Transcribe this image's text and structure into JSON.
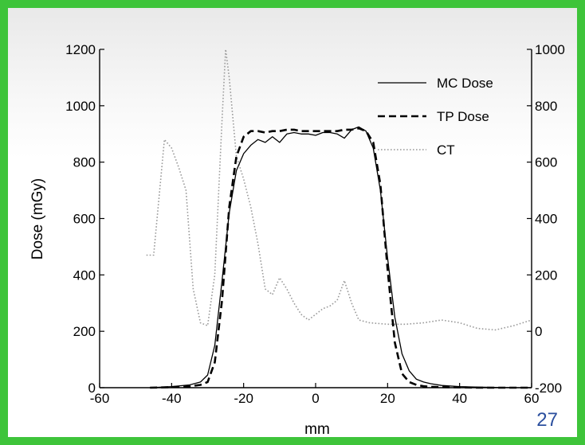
{
  "page_number": "27",
  "colors": {
    "frame": "#3ec43a",
    "mc_dose": "#000000",
    "tp_dose": "#000000",
    "ct": "#9a9a9a",
    "page_number": "#2b4f9e"
  },
  "chart_data": {
    "type": "line",
    "title": "",
    "xlabel": "mm",
    "ylabel": "Dose (mGy)",
    "y2label": "",
    "xlim": [
      -60,
      60
    ],
    "ylim": [
      0,
      1200
    ],
    "y2lim": [
      -200,
      1000
    ],
    "xticks": [
      "-60",
      "-40",
      "-20",
      "0",
      "20",
      "40",
      "60"
    ],
    "yticks": [
      "0",
      "200",
      "400",
      "600",
      "800",
      "1000",
      "1200"
    ],
    "y2ticks": [
      "-200",
      "0",
      "200",
      "400",
      "600",
      "800",
      "1000"
    ],
    "grid": false,
    "legend_position": "top-right",
    "series": [
      {
        "name": "MC Dose",
        "axis": "left",
        "style": "solid",
        "x": [
          -46,
          -40,
          -35,
          -32,
          -30,
          -28,
          -26,
          -24,
          -22,
          -20,
          -18,
          -16,
          -14,
          -12,
          -10,
          -8,
          -6,
          -4,
          -2,
          0,
          2,
          4,
          6,
          8,
          10,
          12,
          14,
          16,
          18,
          20,
          22,
          24,
          26,
          28,
          30,
          32,
          35,
          40,
          45,
          50,
          55,
          60
        ],
        "y": [
          0,
          4,
          10,
          20,
          45,
          150,
          380,
          620,
          770,
          830,
          860,
          880,
          870,
          890,
          870,
          900,
          905,
          900,
          900,
          895,
          905,
          905,
          900,
          885,
          915,
          925,
          910,
          850,
          700,
          460,
          250,
          120,
          60,
          30,
          20,
          14,
          8,
          4,
          2,
          1,
          0,
          0
        ]
      },
      {
        "name": "TP Dose",
        "axis": "left",
        "style": "dashed",
        "x": [
          -46,
          -40,
          -35,
          -32,
          -30,
          -28,
          -26,
          -24,
          -22,
          -20,
          -18,
          -16,
          -14,
          -12,
          -10,
          -8,
          -6,
          -4,
          -2,
          0,
          2,
          4,
          6,
          8,
          10,
          12,
          14,
          16,
          18,
          20,
          22,
          24,
          26,
          28,
          30,
          32,
          35,
          40,
          45,
          50,
          55,
          60
        ],
        "y": [
          0,
          2,
          5,
          10,
          20,
          90,
          310,
          640,
          820,
          890,
          910,
          910,
          905,
          910,
          910,
          915,
          915,
          910,
          910,
          910,
          910,
          910,
          910,
          915,
          915,
          920,
          910,
          870,
          720,
          420,
          160,
          50,
          20,
          10,
          5,
          3,
          2,
          1,
          0,
          0,
          0,
          0
        ]
      },
      {
        "name": "CT",
        "axis": "right",
        "style": "dotted",
        "x": [
          -47,
          -45,
          -42,
          -40,
          -38,
          -36,
          -34,
          -32,
          -30,
          -28,
          -26,
          -25,
          -24,
          -22,
          -20,
          -18,
          -16,
          -14,
          -12,
          -10,
          -8,
          -6,
          -4,
          -2,
          0,
          2,
          4,
          6,
          8,
          10,
          12,
          15,
          20,
          25,
          30,
          35,
          40,
          45,
          50,
          55,
          60
        ],
        "y": [
          270,
          270,
          680,
          650,
          580,
          500,
          150,
          30,
          20,
          200,
          750,
          1000,
          900,
          620,
          540,
          440,
          310,
          150,
          130,
          190,
          150,
          100,
          60,
          40,
          60,
          80,
          90,
          110,
          180,
          100,
          40,
          30,
          25,
          25,
          30,
          40,
          30,
          10,
          5,
          20,
          40
        ]
      }
    ]
  }
}
